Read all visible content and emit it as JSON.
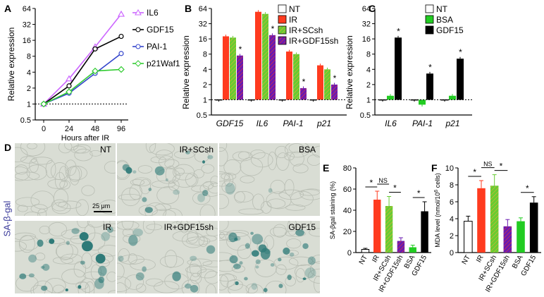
{
  "colors": {
    "IL6": "#cc66ff",
    "GDF15": "#000000",
    "PAI1": "#3344cc",
    "p21Waf1": "#33cc33",
    "NT": "#ffffff",
    "IR": "#ff3b1f",
    "IRSCsh": "#66cc33",
    "IRGDF15sh": "#6a1ab0",
    "BSA": "#22cc22",
    "GDF15bar": "#000000",
    "micro_bg": "#d9ddd4",
    "stain": "#2e7a78"
  },
  "panels": {
    "A": "A",
    "B": "B",
    "C": "C",
    "D": "D",
    "E": "E",
    "F": "F"
  },
  "chart_data": [
    {
      "id": "A",
      "type": "line",
      "xlabel": "Hours after IR",
      "ylabel": "Relative expression",
      "x": [
        0,
        24,
        48,
        96
      ],
      "xticks": [
        "0",
        "24",
        "48",
        "96"
      ],
      "yticks": [
        "0.5",
        "1",
        "2",
        "4",
        "8",
        "16",
        "32",
        "64"
      ],
      "ylim": [
        0.5,
        64
      ],
      "yscale": "log2",
      "reference_line": 1,
      "series": [
        {
          "name": "IL6",
          "values": [
            1.0,
            3.0,
            12.0,
            50.0
          ]
        },
        {
          "name": "GDF15",
          "values": [
            1.0,
            2.2,
            11.0,
            19.0
          ]
        },
        {
          "name": "PAI-1",
          "values": [
            1.0,
            1.6,
            3.8,
            9.0
          ]
        },
        {
          "name": "p21Waf1",
          "values": [
            1.0,
            1.7,
            4.2,
            4.5
          ]
        }
      ]
    },
    {
      "id": "B",
      "type": "bar",
      "ylabel": "Relative expression",
      "categories": [
        "GDF15",
        "IL6",
        "PAI-1",
        "p21"
      ],
      "yticks": [
        "0.5",
        "1",
        "2",
        "4",
        "8",
        "16",
        "32",
        "64"
      ],
      "ylim": [
        0.5,
        64
      ],
      "yscale": "log2",
      "reference_line": 1,
      "legend": [
        "NT",
        "IR",
        "IR+SCsh",
        "IR+GDF15sh"
      ],
      "significance": "*",
      "series": [
        {
          "name": "NT",
          "values": [
            1.0,
            1.0,
            1.0,
            1.0
          ]
        },
        {
          "name": "IR",
          "values": [
            18.0,
            55.0,
            9.0,
            4.8
          ]
        },
        {
          "name": "IR+SCsh",
          "values": [
            17.0,
            50.0,
            8.0,
            4.0
          ]
        },
        {
          "name": "IR+GDF15sh",
          "values": [
            7.5,
            19.0,
            1.7,
            2.0
          ]
        }
      ]
    },
    {
      "id": "C",
      "type": "bar",
      "ylabel": "Relative expression",
      "categories": [
        "IL6",
        "PAI-1",
        "p21"
      ],
      "yticks": [
        "0.5",
        "1",
        "2",
        "4",
        "8",
        "16",
        "32",
        "64"
      ],
      "ylim": [
        0.5,
        64
      ],
      "yscale": "log2",
      "reference_line": 1,
      "legend": [
        "NT",
        "BSA",
        "GDF15"
      ],
      "significance": "*",
      "series": [
        {
          "name": "NT",
          "values": [
            1.0,
            1.0,
            1.0
          ]
        },
        {
          "name": "BSA",
          "values": [
            1.2,
            0.8,
            1.2
          ]
        },
        {
          "name": "GDF15",
          "values": [
            17.0,
            3.3,
            6.5
          ]
        }
      ]
    },
    {
      "id": "E",
      "type": "bar",
      "ylabel": "SA-βgal staining (%)",
      "categories": [
        "NT",
        "IR",
        "IR+SCsh",
        "IR+GDF15sh",
        "BSA",
        "GDF15"
      ],
      "values": [
        3,
        50,
        44,
        11,
        5,
        39
      ],
      "errors": [
        1,
        8,
        9,
        3,
        2,
        9
      ],
      "yticks": [
        "0",
        "20",
        "40",
        "60",
        "80"
      ],
      "ylim": [
        0,
        80
      ],
      "annotations": [
        {
          "from": "NT",
          "to": "IR",
          "text": "*"
        },
        {
          "from": "IR",
          "to": "IR+SCsh",
          "text": "NS"
        },
        {
          "from": "IR+SCsh",
          "to": "IR+GDF15sh",
          "text": "*"
        },
        {
          "from": "BSA",
          "to": "GDF15",
          "text": "*"
        }
      ]
    },
    {
      "id": "F",
      "type": "bar",
      "ylabel": "MDA level (nmol/10",
      "ylabel_sup": "6",
      "ylabel_end": " cells)",
      "categories": [
        "NT",
        "IR",
        "IR+SCsh",
        "IR+GDF15sh",
        "BSA",
        "GDF15"
      ],
      "values": [
        3.7,
        7.6,
        7.9,
        3.1,
        3.7,
        5.9
      ],
      "errors": [
        0.6,
        0.9,
        1.3,
        0.8,
        0.4,
        0.7
      ],
      "yticks": [
        "0",
        "2",
        "4",
        "6",
        "8",
        "10"
      ],
      "ylim": [
        0,
        10
      ],
      "annotations": [
        {
          "from": "NT",
          "to": "IR",
          "text": "*"
        },
        {
          "from": "IR",
          "to": "IR+SCsh",
          "text": "NS"
        },
        {
          "from": "IR+SCsh",
          "to": "IR+GDF15sh",
          "text": "*"
        },
        {
          "from": "BSA",
          "to": "GDF15",
          "text": "*"
        }
      ]
    }
  ],
  "micrographs": {
    "stain_label": "SA-β-gal",
    "scale_bar": "25 μm",
    "panels": [
      "NT",
      "IR+SCsh",
      "BSA",
      "IR",
      "IR+GDF15sh",
      "GDF15"
    ]
  }
}
